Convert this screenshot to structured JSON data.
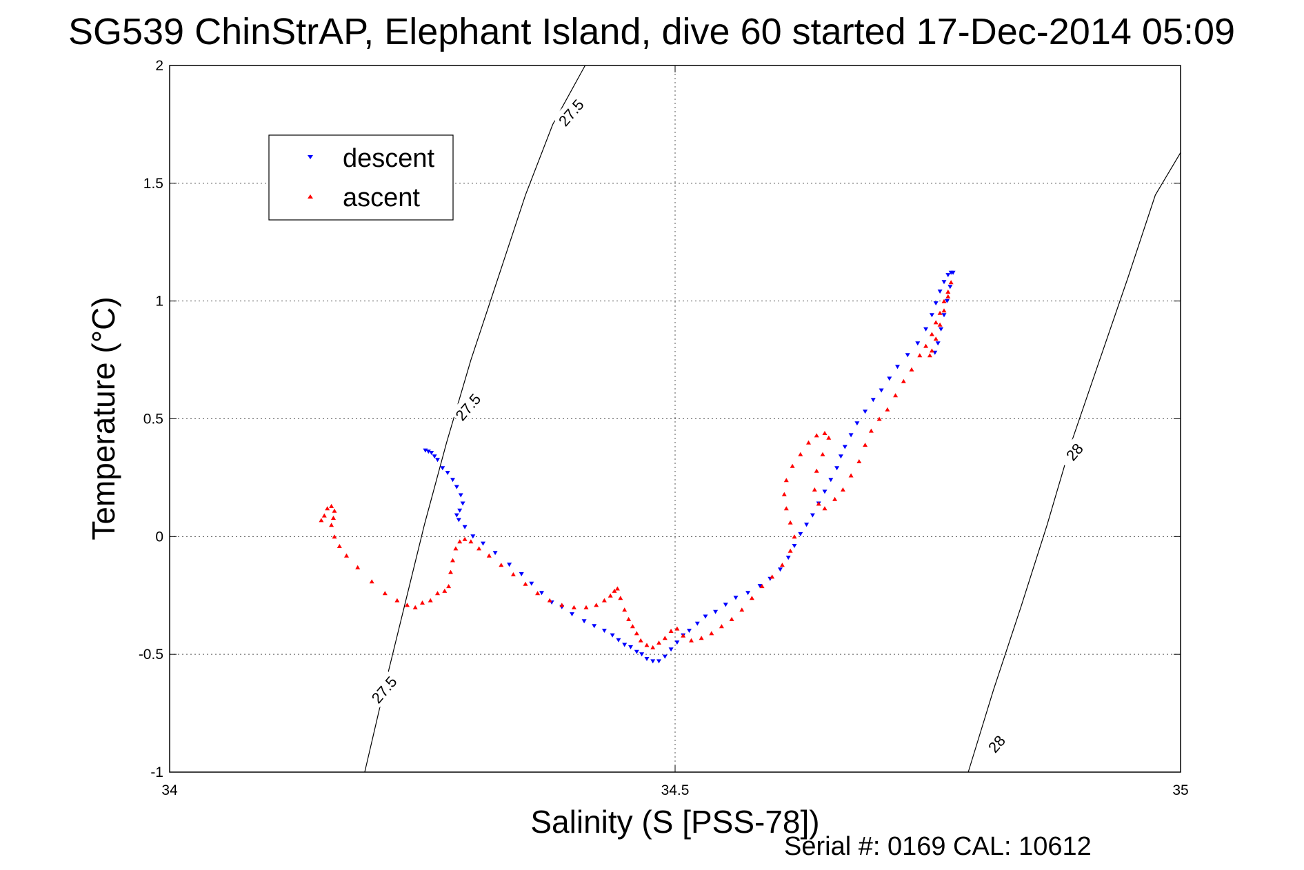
{
  "chart_data": {
    "type": "scatter",
    "title": "SG539 ChinStrAP, Elephant Island, dive 60 started 17-Dec-2014 05:09",
    "xlabel": "Salinity (S [PSS-78])",
    "ylabel": "Temperature (°C)",
    "xlim": [
      34,
      35
    ],
    "ylim": [
      -1,
      2
    ],
    "x_ticks": [
      34,
      34.5,
      35
    ],
    "x_tick_labels": [
      "34",
      "34.5",
      "35"
    ],
    "y_ticks": [
      -1,
      -0.5,
      0,
      0.5,
      1,
      1.5,
      2
    ],
    "y_tick_labels": [
      "-1",
      "-0.5",
      "0",
      "0.5",
      "1",
      "1.5",
      "2"
    ],
    "grid": true,
    "legend_position": "top-left",
    "series": [
      {
        "name": "descent",
        "color": "#0000ff",
        "marker": "triangle-down",
        "points": [
          [
            34.253,
            0.365
          ],
          [
            34.256,
            0.36
          ],
          [
            34.259,
            0.355
          ],
          [
            34.262,
            0.34
          ],
          [
            34.265,
            0.325
          ],
          [
            34.27,
            0.29
          ],
          [
            34.275,
            0.27
          ],
          [
            34.28,
            0.24
          ],
          [
            34.284,
            0.21
          ],
          [
            34.288,
            0.175
          ],
          [
            34.29,
            0.14
          ],
          [
            34.287,
            0.11
          ],
          [
            34.284,
            0.09
          ],
          [
            34.286,
            0.07
          ],
          [
            34.292,
            0.04
          ],
          [
            34.3,
            0.0
          ],
          [
            34.31,
            -0.03
          ],
          [
            34.322,
            -0.07
          ],
          [
            34.336,
            -0.12
          ],
          [
            34.348,
            -0.16
          ],
          [
            34.358,
            -0.2
          ],
          [
            34.368,
            -0.24
          ],
          [
            34.378,
            -0.28
          ],
          [
            34.388,
            -0.3
          ],
          [
            34.398,
            -0.33
          ],
          [
            34.41,
            -0.36
          ],
          [
            34.42,
            -0.38
          ],
          [
            34.43,
            -0.4
          ],
          [
            34.438,
            -0.42
          ],
          [
            34.444,
            -0.44
          ],
          [
            34.45,
            -0.46
          ],
          [
            34.456,
            -0.47
          ],
          [
            34.462,
            -0.49
          ],
          [
            34.467,
            -0.5
          ],
          [
            34.472,
            -0.52
          ],
          [
            34.478,
            -0.53
          ],
          [
            34.484,
            -0.53
          ],
          [
            34.49,
            -0.51
          ],
          [
            34.496,
            -0.48
          ],
          [
            34.502,
            -0.45
          ],
          [
            34.508,
            -0.42
          ],
          [
            34.514,
            -0.4
          ],
          [
            34.522,
            -0.37
          ],
          [
            34.53,
            -0.34
          ],
          [
            34.54,
            -0.32
          ],
          [
            34.55,
            -0.29
          ],
          [
            34.56,
            -0.26
          ],
          [
            34.572,
            -0.24
          ],
          [
            34.584,
            -0.21
          ],
          [
            34.594,
            -0.18
          ],
          [
            34.604,
            -0.14
          ],
          [
            34.612,
            -0.09
          ],
          [
            34.618,
            -0.04
          ],
          [
            34.624,
            0.01
          ],
          [
            34.63,
            0.05
          ],
          [
            34.636,
            0.09
          ],
          [
            34.642,
            0.14
          ],
          [
            34.648,
            0.19
          ],
          [
            34.654,
            0.24
          ],
          [
            34.66,
            0.29
          ],
          [
            34.664,
            0.34
          ],
          [
            34.668,
            0.38
          ],
          [
            34.674,
            0.43
          ],
          [
            34.68,
            0.48
          ],
          [
            34.688,
            0.53
          ],
          [
            34.696,
            0.58
          ],
          [
            34.704,
            0.62
          ],
          [
            34.712,
            0.67
          ],
          [
            34.72,
            0.72
          ],
          [
            34.73,
            0.77
          ],
          [
            34.74,
            0.82
          ],
          [
            34.748,
            0.88
          ],
          [
            34.754,
            0.94
          ],
          [
            34.758,
            0.99
          ],
          [
            34.762,
            1.04
          ],
          [
            34.766,
            1.08
          ],
          [
            34.77,
            1.11
          ],
          [
            34.773,
            1.12
          ],
          [
            34.775,
            1.12
          ],
          [
            34.772,
            1.06
          ],
          [
            34.769,
            1.0
          ],
          [
            34.766,
            0.94
          ],
          [
            34.763,
            0.88
          ],
          [
            34.76,
            0.82
          ],
          [
            34.757,
            0.78
          ]
        ]
      },
      {
        "name": "ascent",
        "color": "#ff0000",
        "marker": "triangle-up",
        "points": [
          [
            34.15,
            0.07
          ],
          [
            34.153,
            0.09
          ],
          [
            34.156,
            0.12
          ],
          [
            34.16,
            0.13
          ],
          [
            34.163,
            0.11
          ],
          [
            34.162,
            0.08
          ],
          [
            34.16,
            0.05
          ],
          [
            34.163,
            0.0
          ],
          [
            34.168,
            -0.04
          ],
          [
            34.175,
            -0.08
          ],
          [
            34.186,
            -0.13
          ],
          [
            34.2,
            -0.19
          ],
          [
            34.213,
            -0.24
          ],
          [
            34.225,
            -0.27
          ],
          [
            34.235,
            -0.29
          ],
          [
            34.243,
            -0.3
          ],
          [
            34.25,
            -0.28
          ],
          [
            34.258,
            -0.27
          ],
          [
            34.265,
            -0.24
          ],
          [
            34.272,
            -0.23
          ],
          [
            34.276,
            -0.21
          ],
          [
            34.278,
            -0.15
          ],
          [
            34.28,
            -0.1
          ],
          [
            34.283,
            -0.05
          ],
          [
            34.287,
            -0.02
          ],
          [
            34.292,
            -0.01
          ],
          [
            34.298,
            -0.02
          ],
          [
            34.306,
            -0.05
          ],
          [
            34.316,
            -0.08
          ],
          [
            34.328,
            -0.12
          ],
          [
            34.34,
            -0.16
          ],
          [
            34.352,
            -0.2
          ],
          [
            34.364,
            -0.24
          ],
          [
            34.376,
            -0.27
          ],
          [
            34.388,
            -0.29
          ],
          [
            34.4,
            -0.3
          ],
          [
            34.412,
            -0.3
          ],
          [
            34.422,
            -0.29
          ],
          [
            34.43,
            -0.27
          ],
          [
            34.436,
            -0.25
          ],
          [
            34.44,
            -0.23
          ],
          [
            34.443,
            -0.22
          ],
          [
            34.446,
            -0.26
          ],
          [
            34.45,
            -0.31
          ],
          [
            34.454,
            -0.35
          ],
          [
            34.458,
            -0.38
          ],
          [
            34.462,
            -0.41
          ],
          [
            34.466,
            -0.44
          ],
          [
            34.472,
            -0.46
          ],
          [
            34.478,
            -0.47
          ],
          [
            34.484,
            -0.45
          ],
          [
            34.49,
            -0.43
          ],
          [
            34.496,
            -0.4
          ],
          [
            34.502,
            -0.39
          ],
          [
            34.508,
            -0.42
          ],
          [
            34.516,
            -0.44
          ],
          [
            34.526,
            -0.43
          ],
          [
            34.536,
            -0.41
          ],
          [
            34.546,
            -0.38
          ],
          [
            34.556,
            -0.35
          ],
          [
            34.566,
            -0.31
          ],
          [
            34.576,
            -0.26
          ],
          [
            34.586,
            -0.21
          ],
          [
            34.596,
            -0.17
          ],
          [
            34.606,
            -0.12
          ],
          [
            34.614,
            -0.06
          ],
          [
            34.618,
            0.0
          ],
          [
            34.614,
            0.06
          ],
          [
            34.61,
            0.12
          ],
          [
            34.608,
            0.18
          ],
          [
            34.61,
            0.24
          ],
          [
            34.616,
            0.3
          ],
          [
            34.624,
            0.35
          ],
          [
            34.632,
            0.4
          ],
          [
            34.64,
            0.43
          ],
          [
            34.648,
            0.44
          ],
          [
            34.652,
            0.42
          ],
          [
            34.646,
            0.35
          ],
          [
            34.64,
            0.28
          ],
          [
            34.638,
            0.2
          ],
          [
            34.642,
            0.14
          ],
          [
            34.648,
            0.12
          ],
          [
            34.658,
            0.16
          ],
          [
            34.666,
            0.2
          ],
          [
            34.674,
            0.26
          ],
          [
            34.682,
            0.32
          ],
          [
            34.688,
            0.39
          ],
          [
            34.694,
            0.45
          ],
          [
            34.702,
            0.5
          ],
          [
            34.71,
            0.54
          ],
          [
            34.718,
            0.6
          ],
          [
            34.726,
            0.66
          ],
          [
            34.734,
            0.71
          ],
          [
            34.742,
            0.77
          ],
          [
            34.748,
            0.81
          ],
          [
            34.754,
            0.86
          ],
          [
            34.758,
            0.91
          ],
          [
            34.762,
            0.95
          ],
          [
            34.766,
            1.0
          ],
          [
            34.77,
            1.04
          ],
          [
            34.773,
            1.08
          ],
          [
            34.77,
            1.02
          ],
          [
            34.766,
            0.96
          ],
          [
            34.762,
            0.9
          ],
          [
            34.758,
            0.84
          ],
          [
            34.754,
            0.79
          ],
          [
            34.752,
            0.77
          ]
        ]
      }
    ],
    "contours": [
      {
        "label": "27.5",
        "points": [
          [
            34.193,
            -1.0
          ],
          [
            34.212,
            -0.65
          ],
          [
            34.232,
            -0.3
          ],
          [
            34.252,
            0.05
          ],
          [
            34.274,
            0.4
          ],
          [
            34.298,
            0.75
          ],
          [
            34.325,
            1.1
          ],
          [
            34.352,
            1.45
          ],
          [
            34.379,
            1.75
          ],
          [
            34.411,
            2.0
          ]
        ],
        "label_positions": [
          [
            34.212,
            -0.65
          ],
          [
            34.295,
            0.55
          ],
          [
            34.397,
            1.8
          ]
        ]
      },
      {
        "label": "28",
        "points": [
          [
            34.79,
            -1.0
          ],
          [
            34.815,
            -0.65
          ],
          [
            34.842,
            -0.3
          ],
          [
            34.868,
            0.05
          ],
          [
            34.892,
            0.4
          ],
          [
            34.92,
            0.75
          ],
          [
            34.948,
            1.1
          ],
          [
            34.975,
            1.45
          ],
          [
            35.0,
            1.63
          ]
        ],
        "label_positions": [
          [
            34.818,
            -0.88
          ],
          [
            34.895,
            0.36
          ]
        ]
      }
    ],
    "footer": "Serial #: 0169 CAL: 10612"
  }
}
